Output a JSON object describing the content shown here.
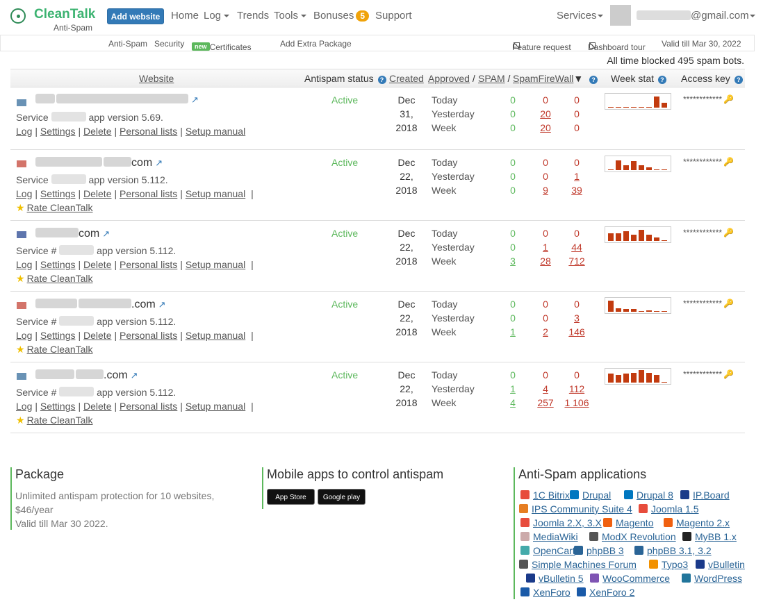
{
  "brand": {
    "name": "CleanTalk",
    "sub": "Anti-Spam"
  },
  "topnav": {
    "add_website": "Add website",
    "home": "Home",
    "log": "Log",
    "trends": "Trends",
    "tools": "Tools",
    "bonuses": "Bonuses",
    "bonuses_count": "5",
    "support": "Support",
    "services": "Services",
    "email": "@gmail.com"
  },
  "subnav": {
    "antispam": "Anti-Spam",
    "security": "Security",
    "ssl": "SSL Certificates",
    "new_badge": "new",
    "extra": "Add Extra Package",
    "feature": "Feature request",
    "tour": "Dashboard tour",
    "valid": "Valid till Mar 30, 2022"
  },
  "blocked_text": "All time blocked 495 spam bots.",
  "table_header": {
    "website": "Website",
    "antispam_status": "Antispam status",
    "created": "Created",
    "approved": "Approved",
    "spam": "SPAM",
    "sfw": "SpamFireWall",
    "sep": "/",
    "week_stat": "Week stat",
    "access_key": "Access key"
  },
  "common": {
    "log": "Log",
    "settings": "Settings",
    "delete": "Delete",
    "personal": "Personal lists",
    "manual": "Setup manual",
    "rate": "Rate CleanTalk",
    "active": "Active",
    "today": "Today",
    "yesterday": "Yesterday",
    "week": "Week",
    "key": "************"
  },
  "rows": [
    {
      "name": "",
      "service_prefix": "Service",
      "service_suffix": "app version 5.69.",
      "date": [
        "Dec",
        "31,",
        "2018"
      ],
      "today": [
        "0",
        "0",
        "0"
      ],
      "yesterday": [
        "0",
        "20",
        "0"
      ],
      "week": [
        "0",
        "20",
        "0"
      ],
      "week_bars": [
        0,
        0,
        0,
        0,
        0,
        0,
        0.9,
        0.4
      ]
    },
    {
      "name": "com",
      "service_prefix": "Service",
      "service_suffix": "app version 5.112.",
      "date": [
        "Dec",
        "22,",
        "2018"
      ],
      "today": [
        "0",
        "0",
        "0"
      ],
      "yesterday": [
        "0",
        "0",
        "1"
      ],
      "week": [
        "0",
        "9",
        "39"
      ],
      "week_bars": [
        0,
        0.8,
        0.4,
        0.7,
        0.4,
        0.2,
        0,
        0
      ]
    },
    {
      "name": "com",
      "service_prefix": "Service #",
      "service_suffix": "app version 5.112.",
      "date": [
        "Dec",
        "22,",
        "2018"
      ],
      "today": [
        "0",
        "0",
        "0"
      ],
      "yesterday": [
        "0",
        "1",
        "44"
      ],
      "week": [
        "3",
        "28",
        "712"
      ],
      "week_bars": [
        0.6,
        0.6,
        0.8,
        0.5,
        0.9,
        0.5,
        0.3,
        0
      ]
    },
    {
      "name": ".com",
      "service_prefix": "Service #",
      "service_suffix": "app version 5.112.",
      "date": [
        "Dec",
        "22,",
        "2018"
      ],
      "today": [
        "0",
        "0",
        "0"
      ],
      "yesterday": [
        "0",
        "0",
        "3"
      ],
      "week": [
        "1",
        "2",
        "146"
      ],
      "week_bars": [
        0.9,
        0.3,
        0.2,
        0.2,
        0,
        0.1,
        0,
        0
      ]
    },
    {
      "name": ".com",
      "service_prefix": "Service #",
      "service_suffix": "app version 5.112.",
      "date": [
        "Dec",
        "22,",
        "2018"
      ],
      "today": [
        "0",
        "0",
        "0"
      ],
      "yesterday": [
        "1",
        "4",
        "112"
      ],
      "week": [
        "4",
        "257",
        "1 106"
      ],
      "week_bars": [
        0.7,
        0.6,
        0.7,
        0.8,
        1.0,
        0.8,
        0.6,
        0
      ]
    }
  ],
  "footer": {
    "package_title": "Package",
    "package_line1": "Unlimited antispam protection for 10 websites,",
    "package_line2": "$46/year",
    "package_line3": "Valid till Mar 30 2022.",
    "mobile_title": "Mobile apps to control antispam",
    "appstore": "App Store",
    "googleplay": "Google play",
    "apps_title": "Anti-Spam applications",
    "apps": [
      "1C Bitrix",
      "Drupal",
      "Drupal 8",
      "IP.Board",
      "IPS Community Suite 4",
      "Joomla 1.5",
      "Joomla 2.X, 3.X",
      "Magento",
      "Magento 2.x",
      "MediaWiki",
      "ModX Revolution",
      "MyBB 1.x",
      "OpenCart",
      "phpBB 3",
      "phpBB 3.1, 3.2",
      "Simple Machines Forum",
      "Typo3",
      "vBulletin",
      "vBulletin 5",
      "WooCommerce",
      "WordPress",
      "XenForo",
      "XenForo 2"
    ]
  }
}
